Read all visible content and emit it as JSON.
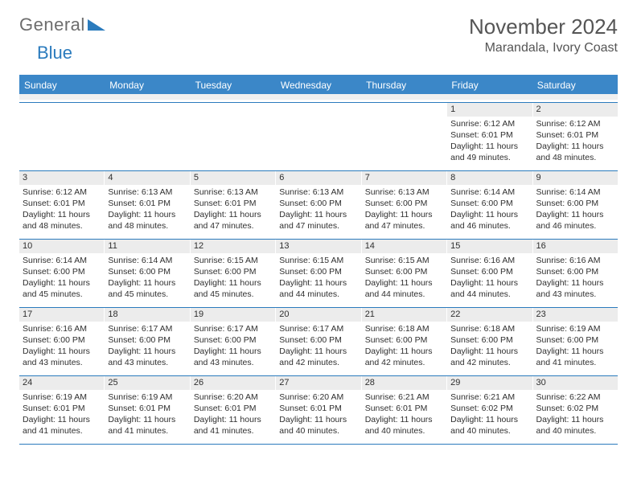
{
  "logo": {
    "general": "General",
    "blue": "Blue"
  },
  "title": "November 2024",
  "location": "Marandala, Ivory Coast",
  "colors": {
    "header_bg": "#3b87c8",
    "rule": "#2b7bbd",
    "band": "#ececec",
    "text": "#2f2f2f"
  },
  "weekdays": [
    "Sunday",
    "Monday",
    "Tuesday",
    "Wednesday",
    "Thursday",
    "Friday",
    "Saturday"
  ],
  "labels": {
    "sunrise": "Sunrise: ",
    "sunset": "Sunset: ",
    "daylight": "Daylight: "
  },
  "weeks": [
    [
      {
        "empty": true
      },
      {
        "empty": true
      },
      {
        "empty": true
      },
      {
        "empty": true
      },
      {
        "empty": true
      },
      {
        "num": "1",
        "sunrise": "6:12 AM",
        "sunset": "6:01 PM",
        "daylight": "11 hours and 49 minutes."
      },
      {
        "num": "2",
        "sunrise": "6:12 AM",
        "sunset": "6:01 PM",
        "daylight": "11 hours and 48 minutes."
      }
    ],
    [
      {
        "num": "3",
        "sunrise": "6:12 AM",
        "sunset": "6:01 PM",
        "daylight": "11 hours and 48 minutes."
      },
      {
        "num": "4",
        "sunrise": "6:13 AM",
        "sunset": "6:01 PM",
        "daylight": "11 hours and 48 minutes."
      },
      {
        "num": "5",
        "sunrise": "6:13 AM",
        "sunset": "6:01 PM",
        "daylight": "11 hours and 47 minutes."
      },
      {
        "num": "6",
        "sunrise": "6:13 AM",
        "sunset": "6:00 PM",
        "daylight": "11 hours and 47 minutes."
      },
      {
        "num": "7",
        "sunrise": "6:13 AM",
        "sunset": "6:00 PM",
        "daylight": "11 hours and 47 minutes."
      },
      {
        "num": "8",
        "sunrise": "6:14 AM",
        "sunset": "6:00 PM",
        "daylight": "11 hours and 46 minutes."
      },
      {
        "num": "9",
        "sunrise": "6:14 AM",
        "sunset": "6:00 PM",
        "daylight": "11 hours and 46 minutes."
      }
    ],
    [
      {
        "num": "10",
        "sunrise": "6:14 AM",
        "sunset": "6:00 PM",
        "daylight": "11 hours and 45 minutes."
      },
      {
        "num": "11",
        "sunrise": "6:14 AM",
        "sunset": "6:00 PM",
        "daylight": "11 hours and 45 minutes."
      },
      {
        "num": "12",
        "sunrise": "6:15 AM",
        "sunset": "6:00 PM",
        "daylight": "11 hours and 45 minutes."
      },
      {
        "num": "13",
        "sunrise": "6:15 AM",
        "sunset": "6:00 PM",
        "daylight": "11 hours and 44 minutes."
      },
      {
        "num": "14",
        "sunrise": "6:15 AM",
        "sunset": "6:00 PM",
        "daylight": "11 hours and 44 minutes."
      },
      {
        "num": "15",
        "sunrise": "6:16 AM",
        "sunset": "6:00 PM",
        "daylight": "11 hours and 44 minutes."
      },
      {
        "num": "16",
        "sunrise": "6:16 AM",
        "sunset": "6:00 PM",
        "daylight": "11 hours and 43 minutes."
      }
    ],
    [
      {
        "num": "17",
        "sunrise": "6:16 AM",
        "sunset": "6:00 PM",
        "daylight": "11 hours and 43 minutes."
      },
      {
        "num": "18",
        "sunrise": "6:17 AM",
        "sunset": "6:00 PM",
        "daylight": "11 hours and 43 minutes."
      },
      {
        "num": "19",
        "sunrise": "6:17 AM",
        "sunset": "6:00 PM",
        "daylight": "11 hours and 43 minutes."
      },
      {
        "num": "20",
        "sunrise": "6:17 AM",
        "sunset": "6:00 PM",
        "daylight": "11 hours and 42 minutes."
      },
      {
        "num": "21",
        "sunrise": "6:18 AM",
        "sunset": "6:00 PM",
        "daylight": "11 hours and 42 minutes."
      },
      {
        "num": "22",
        "sunrise": "6:18 AM",
        "sunset": "6:00 PM",
        "daylight": "11 hours and 42 minutes."
      },
      {
        "num": "23",
        "sunrise": "6:19 AM",
        "sunset": "6:00 PM",
        "daylight": "11 hours and 41 minutes."
      }
    ],
    [
      {
        "num": "24",
        "sunrise": "6:19 AM",
        "sunset": "6:01 PM",
        "daylight": "11 hours and 41 minutes."
      },
      {
        "num": "25",
        "sunrise": "6:19 AM",
        "sunset": "6:01 PM",
        "daylight": "11 hours and 41 minutes."
      },
      {
        "num": "26",
        "sunrise": "6:20 AM",
        "sunset": "6:01 PM",
        "daylight": "11 hours and 41 minutes."
      },
      {
        "num": "27",
        "sunrise": "6:20 AM",
        "sunset": "6:01 PM",
        "daylight": "11 hours and 40 minutes."
      },
      {
        "num": "28",
        "sunrise": "6:21 AM",
        "sunset": "6:01 PM",
        "daylight": "11 hours and 40 minutes."
      },
      {
        "num": "29",
        "sunrise": "6:21 AM",
        "sunset": "6:02 PM",
        "daylight": "11 hours and 40 minutes."
      },
      {
        "num": "30",
        "sunrise": "6:22 AM",
        "sunset": "6:02 PM",
        "daylight": "11 hours and 40 minutes."
      }
    ]
  ]
}
